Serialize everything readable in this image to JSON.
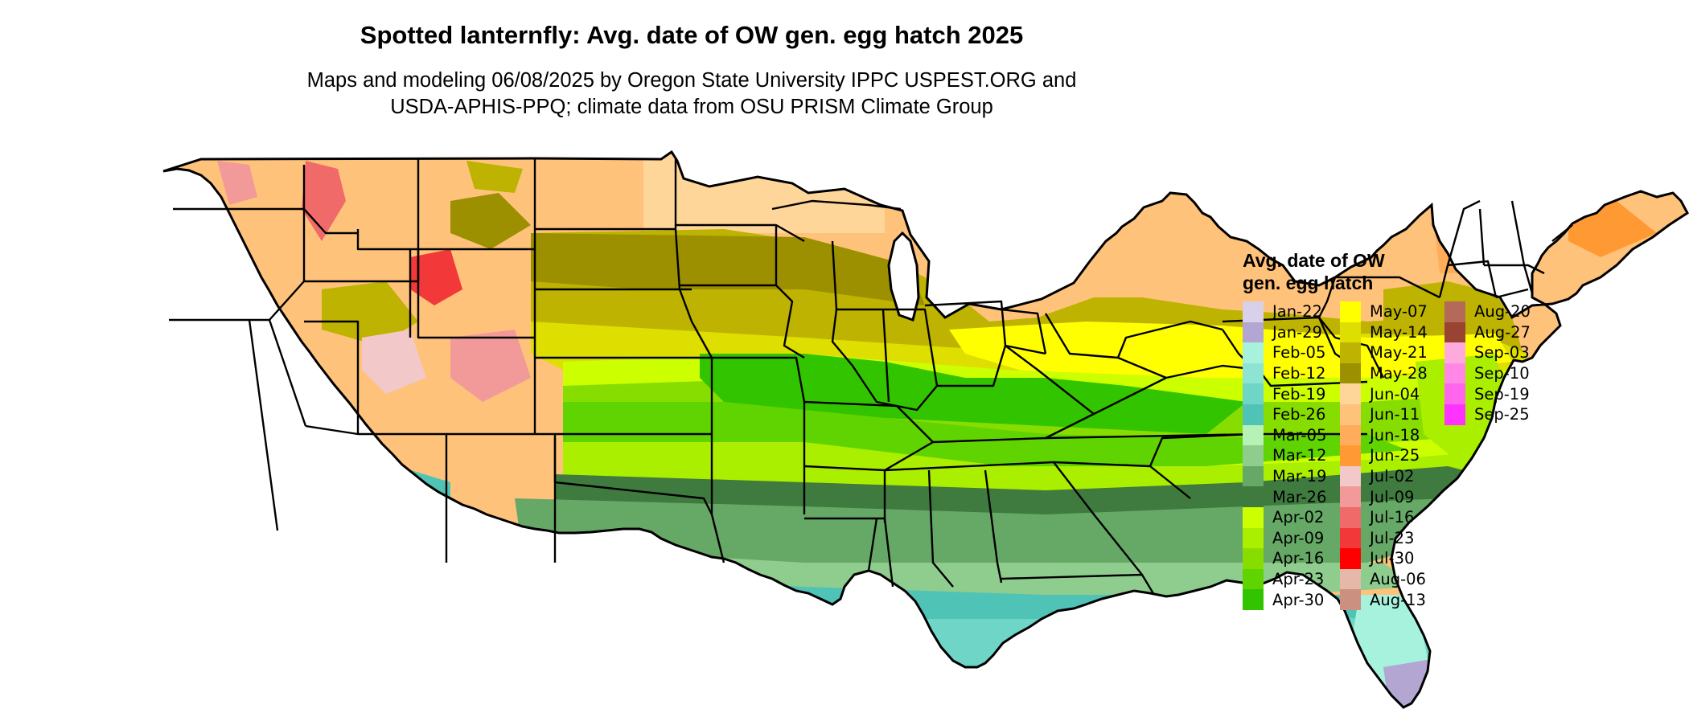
{
  "title": "Spotted lanternfly: Avg. date of OW gen. egg hatch 2025",
  "subtitle_lines": [
    "Maps and modeling 06/08/2025 by Oregon State University IPPC USPEST.ORG and",
    "USDA-APHIS-PPQ; climate data from OSU PRISM Climate Group"
  ],
  "legend": {
    "title_lines": [
      "Avg. date of OW",
      "gen. egg hatch"
    ],
    "items": [
      {
        "label": "Jan-22",
        "color": "#d9d0ea"
      },
      {
        "label": "Jan-29",
        "color": "#b3a6d2"
      },
      {
        "label": "Feb-05",
        "color": "#a6f2dc"
      },
      {
        "label": "Feb-12",
        "color": "#8ee4d2"
      },
      {
        "label": "Feb-19",
        "color": "#6fd5c6"
      },
      {
        "label": "Feb-26",
        "color": "#4fc4b6"
      },
      {
        "label": "Mar-05",
        "color": "#b6f2b6"
      },
      {
        "label": "Mar-12",
        "color": "#8fcd8f"
      },
      {
        "label": "Mar-19",
        "color": "#66a866"
      },
      {
        "label": "Mar-26",
        "color": "#3f7a3f"
      },
      {
        "label": "Apr-02",
        "color": "#ccff00"
      },
      {
        "label": "Apr-09",
        "color": "#aaee00"
      },
      {
        "label": "Apr-16",
        "color": "#88dd00"
      },
      {
        "label": "Apr-23",
        "color": "#5fd400"
      },
      {
        "label": "Apr-30",
        "color": "#33c400"
      },
      {
        "label": "May-07",
        "color": "#ffff00"
      },
      {
        "label": "May-14",
        "color": "#dede00"
      },
      {
        "label": "May-21",
        "color": "#bdb300"
      },
      {
        "label": "May-28",
        "color": "#9c8f00"
      },
      {
        "label": "Jun-04",
        "color": "#ffd699"
      },
      {
        "label": "Jun-11",
        "color": "#ffc27a"
      },
      {
        "label": "Jun-18",
        "color": "#ffad5a"
      },
      {
        "label": "Jun-25",
        "color": "#ff9933"
      },
      {
        "label": "Jul-02",
        "color": "#f2c8c8"
      },
      {
        "label": "Jul-09",
        "color": "#f29a9a"
      },
      {
        "label": "Jul-16",
        "color": "#f06a6a"
      },
      {
        "label": "Jul-23",
        "color": "#f23838"
      },
      {
        "label": "Jul-30",
        "color": "#ff0000"
      },
      {
        "label": "Aug-06",
        "color": "#e6b8aa"
      },
      {
        "label": "Aug-13",
        "color": "#cc9080"
      },
      {
        "label": "Aug-20",
        "color": "#b36a58"
      },
      {
        "label": "Aug-27",
        "color": "#994433"
      },
      {
        "label": "Sep-03",
        "color": "#ffaadd"
      },
      {
        "label": "Sep-10",
        "color": "#ff88e6"
      },
      {
        "label": "Sep-19",
        "color": "#ff66ee"
      },
      {
        "label": "Sep-25",
        "color": "#ff33ff"
      }
    ]
  }
}
